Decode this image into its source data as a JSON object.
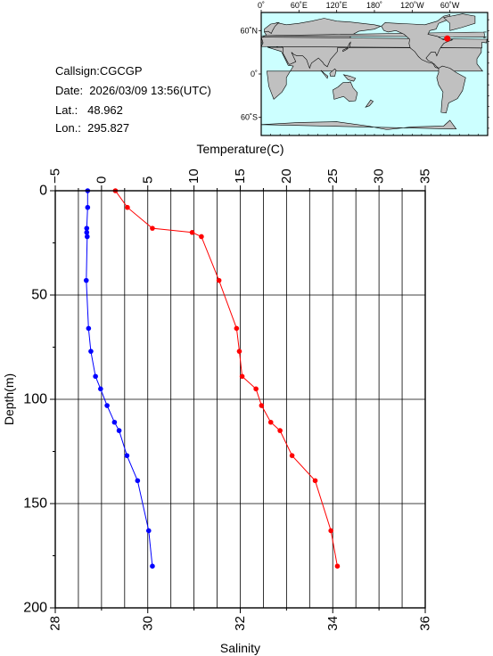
{
  "header": {
    "callsign": "Callsign:CGCGP",
    "date": "Date:  2026/03/09 13:56(UTC)",
    "lat": "Lat.:   48.962",
    "lon": "Lon.:  295.827"
  },
  "map": {
    "top_ticks": [
      "0˚",
      "60˚E",
      "120˚E",
      "180˚",
      "120˚W",
      "60˚W"
    ],
    "lat_ticks": [
      "60˚N",
      "0˚",
      "60˚S"
    ],
    "marker": {
      "lat": 48.962,
      "lon": 295.827
    },
    "ocean_color": "#ccffff",
    "land_color": "#c0c0c0",
    "marker_color": "#ff0000"
  },
  "chart_data": {
    "type": "line",
    "top_axis": {
      "label": "Temperature(C)",
      "range": [
        -5,
        35
      ],
      "ticks": [
        "−5",
        "0",
        "5",
        "10",
        "15",
        "20",
        "25",
        "30",
        "35"
      ]
    },
    "bottom_axis": {
      "label": "Salinity",
      "range": [
        28,
        36
      ],
      "ticks": [
        "28",
        "30",
        "32",
        "34",
        "36"
      ]
    },
    "y_axis": {
      "label": "Depth(m)",
      "range": [
        0,
        200
      ],
      "inverted": true,
      "ticks": [
        "0",
        "50",
        "100",
        "150",
        "200"
      ]
    },
    "grid": true,
    "series": [
      {
        "color": "#ff0000",
        "axis": "top",
        "points": [
          [
            1.5,
            0
          ],
          [
            2.8,
            8
          ],
          [
            5.5,
            18
          ],
          [
            9.8,
            20
          ],
          [
            10.8,
            22
          ],
          [
            12.7,
            43
          ],
          [
            14.6,
            66
          ],
          [
            14.9,
            77
          ],
          [
            15.2,
            89
          ],
          [
            16.7,
            95
          ],
          [
            17.3,
            103
          ],
          [
            18.3,
            111
          ],
          [
            19.3,
            115
          ],
          [
            20.6,
            127
          ],
          [
            23.1,
            139
          ],
          [
            24.8,
            163
          ],
          [
            25.5,
            180
          ]
        ]
      },
      {
        "color": "#0000ff",
        "axis": "bottom",
        "points": [
          [
            28.7,
            0
          ],
          [
            28.7,
            8
          ],
          [
            28.68,
            18
          ],
          [
            28.68,
            20
          ],
          [
            28.69,
            22
          ],
          [
            28.67,
            43
          ],
          [
            28.72,
            66
          ],
          [
            28.77,
            77
          ],
          [
            28.87,
            89
          ],
          [
            28.98,
            95
          ],
          [
            29.12,
            103
          ],
          [
            29.28,
            111
          ],
          [
            29.38,
            115
          ],
          [
            29.55,
            127
          ],
          [
            29.78,
            139
          ],
          [
            30.02,
            163
          ],
          [
            30.1,
            180
          ]
        ]
      }
    ]
  }
}
